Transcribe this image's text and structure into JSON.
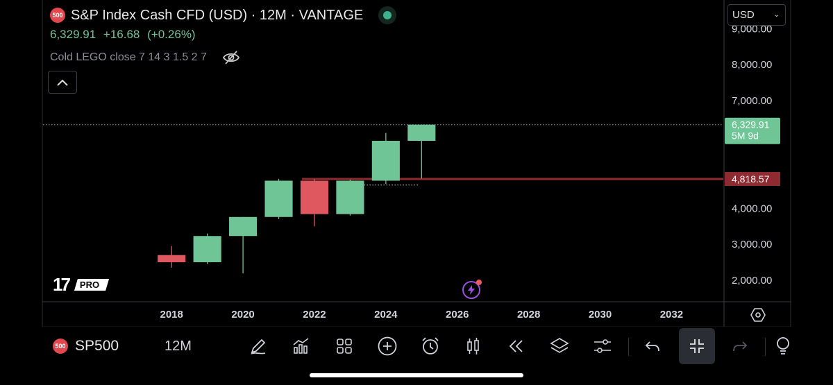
{
  "header": {
    "badge": "500",
    "title": "S&P Index Cash CFD (USD) · 12M · VANTAGE",
    "last": "6,329.91",
    "change": "+16.68",
    "change_pct": "(+0.26%)",
    "indicator": "Cold LEGO close 7 14 3 1.5 2 7",
    "status_color": "#3fb28f"
  },
  "currency": {
    "label": "USD"
  },
  "chart_data": {
    "type": "candlestick",
    "interval": "12M",
    "x_ticks": [
      "2018",
      "2020",
      "2022",
      "2024",
      "2026",
      "2028",
      "2030",
      "2032"
    ],
    "y_ticks": [
      "9,000.00",
      "8,000.00",
      "7,000.00",
      "4,000.00",
      "3,000.00",
      "2,000.00"
    ],
    "ylim": [
      1400,
      9800
    ],
    "xlim": [
      2014.4,
      2033.45
    ],
    "candles": [
      {
        "year": 2018,
        "open": 2700,
        "high": 2950,
        "low": 2350,
        "close": 2500
      },
      {
        "year": 2019,
        "open": 2500,
        "high": 3300,
        "low": 2450,
        "close": 3230
      },
      {
        "year": 2020,
        "open": 3230,
        "high": 3760,
        "low": 2190,
        "close": 3760
      },
      {
        "year": 2021,
        "open": 3760,
        "high": 4820,
        "low": 3700,
        "close": 4770
      },
      {
        "year": 2022,
        "open": 4770,
        "high": 4820,
        "low": 3500,
        "close": 3840
      },
      {
        "year": 2023,
        "open": 3840,
        "high": 4800,
        "low": 3800,
        "close": 4770
      },
      {
        "year": 2024,
        "open": 4770,
        "high": 6100,
        "low": 4680,
        "close": 5880
      },
      {
        "year": 2025,
        "open": 5880,
        "high": 6329.91,
        "low": 4830,
        "close": 6329.91
      }
    ],
    "colors": {
      "up": "#6fc596",
      "down": "#e0585f",
      "level": "#8f2b30",
      "last_price_label": "#6fc596"
    },
    "last_price": {
      "value": 6329.91,
      "label": "6,329.91",
      "countdown": "5M 9d"
    },
    "level_line": {
      "value": 4818.57,
      "label": "4,818.57",
      "start_year": 2022
    },
    "dotted_line": {
      "value": 4650,
      "start_year": 2023,
      "end_year": 2024.9
    },
    "grid": false
  },
  "logo": {
    "text": "17",
    "badge": "PRO"
  },
  "toolbar": {
    "badge": "500",
    "symbol": "SP500",
    "interval": "12M",
    "icons": [
      "pencil-icon",
      "indicators-icon",
      "layouts-icon",
      "add-icon",
      "alarm-icon",
      "candles-icon",
      "rewind-icon",
      "layers-icon",
      "sliders-icon",
      "undo-icon",
      "collapse-icon",
      "redo-icon",
      "idea-icon"
    ]
  }
}
